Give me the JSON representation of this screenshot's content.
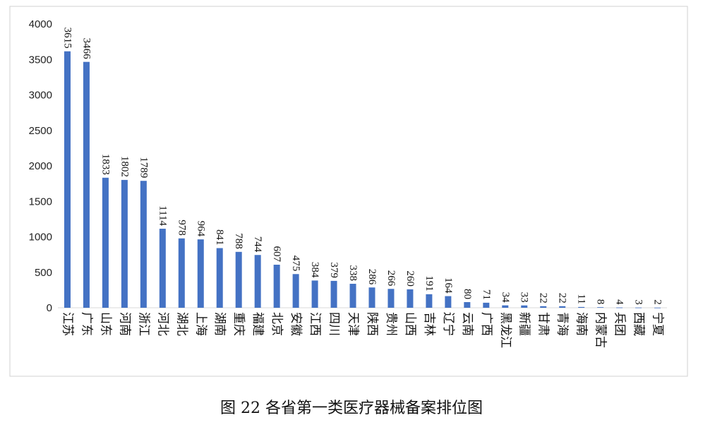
{
  "caption": "图 22  各省第一类医疗器械备案排位图",
  "chart_data": {
    "type": "bar",
    "title": "",
    "xlabel": "",
    "ylabel": "",
    "ylim": [
      0,
      4000
    ],
    "yticks": [
      0,
      500,
      1000,
      1500,
      2000,
      2500,
      3000,
      3500,
      4000
    ],
    "grid": false,
    "bar_color": "#4472C4",
    "categories": [
      "江苏",
      "广东",
      "山东",
      "河南",
      "浙江",
      "河北",
      "湖北",
      "上海",
      "湖南",
      "重庆",
      "福建",
      "北京",
      "安徽",
      "江西",
      "四川",
      "天津",
      "陕西",
      "贵州",
      "山西",
      "吉林",
      "辽宁",
      "云南",
      "广西",
      "黑龙江",
      "新疆",
      "甘肃",
      "青海",
      "海南",
      "内蒙古",
      "兵团",
      "西藏",
      "宁夏"
    ],
    "values": [
      3615,
      3466,
      1833,
      1802,
      1789,
      1114,
      978,
      964,
      841,
      788,
      744,
      607,
      475,
      384,
      379,
      338,
      286,
      266,
      260,
      191,
      164,
      80,
      71,
      34,
      33,
      22,
      22,
      11,
      8,
      4,
      3,
      2
    ]
  }
}
